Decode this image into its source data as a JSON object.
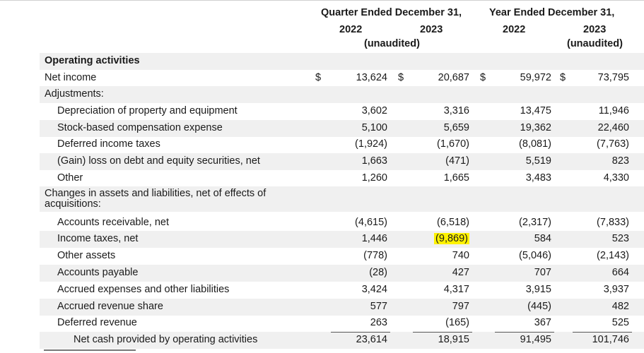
{
  "header": {
    "quarter_title": "Quarter Ended December 31,",
    "year_title": "Year Ended December 31,",
    "q_2022": "2022",
    "q_2023": "2023",
    "y_2022": "2022",
    "y_2023": "2023",
    "q_unaudited": "(unaudited)",
    "y_unaudited": "(unaudited)"
  },
  "currency_symbol": "$",
  "rows": [
    {
      "label": "Operating activities",
      "style": "section"
    },
    {
      "label": "Net income",
      "values": [
        "13,624",
        "20,687",
        "59,972",
        "73,795"
      ],
      "currency": true
    },
    {
      "label": "Adjustments:"
    },
    {
      "label": "Depreciation of property and equipment",
      "indent": 1,
      "values": [
        "3,602",
        "3,316",
        "13,475",
        "11,946"
      ]
    },
    {
      "label": "Stock-based compensation expense",
      "indent": 1,
      "values": [
        "5,100",
        "5,659",
        "19,362",
        "22,460"
      ]
    },
    {
      "label": "Deferred income taxes",
      "indent": 1,
      "values": [
        "(1,924)",
        "(1,670)",
        "(8,081)",
        "(7,763)"
      ]
    },
    {
      "label": "(Gain) loss on debt and equity securities, net",
      "indent": 1,
      "values": [
        "1,663",
        "(471)",
        "5,519",
        "823"
      ]
    },
    {
      "label": "Other",
      "indent": 1,
      "values": [
        "1,260",
        "1,665",
        "3,483",
        "4,330"
      ]
    },
    {
      "label": "Changes in assets and liabilities, net of effects of acquisitions:",
      "wrap": true
    },
    {
      "label": "Accounts receivable, net",
      "indent": 1,
      "values": [
        "(4,615)",
        "(6,518)",
        "(2,317)",
        "(7,833)"
      ]
    },
    {
      "label": "Income taxes, net",
      "indent": 1,
      "values": [
        "1,446",
        "(9,869)",
        "584",
        "523"
      ],
      "highlight_col": 1
    },
    {
      "label": "Other assets",
      "indent": 1,
      "values": [
        "(778)",
        "740",
        "(5,046)",
        "(2,143)"
      ]
    },
    {
      "label": "Accounts payable",
      "indent": 1,
      "values": [
        "(28)",
        "427",
        "707",
        "664"
      ]
    },
    {
      "label": "Accrued expenses and other liabilities",
      "indent": 1,
      "values": [
        "3,424",
        "4,317",
        "3,915",
        "3,937"
      ]
    },
    {
      "label": "Accrued revenue share",
      "indent": 1,
      "values": [
        "577",
        "797",
        "(445)",
        "482"
      ]
    },
    {
      "label": "Deferred revenue",
      "indent": 1,
      "values": [
        "263",
        "(165)",
        "367",
        "525"
      ]
    },
    {
      "label": "Net cash provided by operating activities",
      "indent": 2,
      "values": [
        "23,614",
        "18,915",
        "91,495",
        "101,746"
      ],
      "total": true
    }
  ],
  "colors": {
    "shade": "#f0f0f0",
    "highlight": "#fff200",
    "text": "#1a1a1a"
  }
}
